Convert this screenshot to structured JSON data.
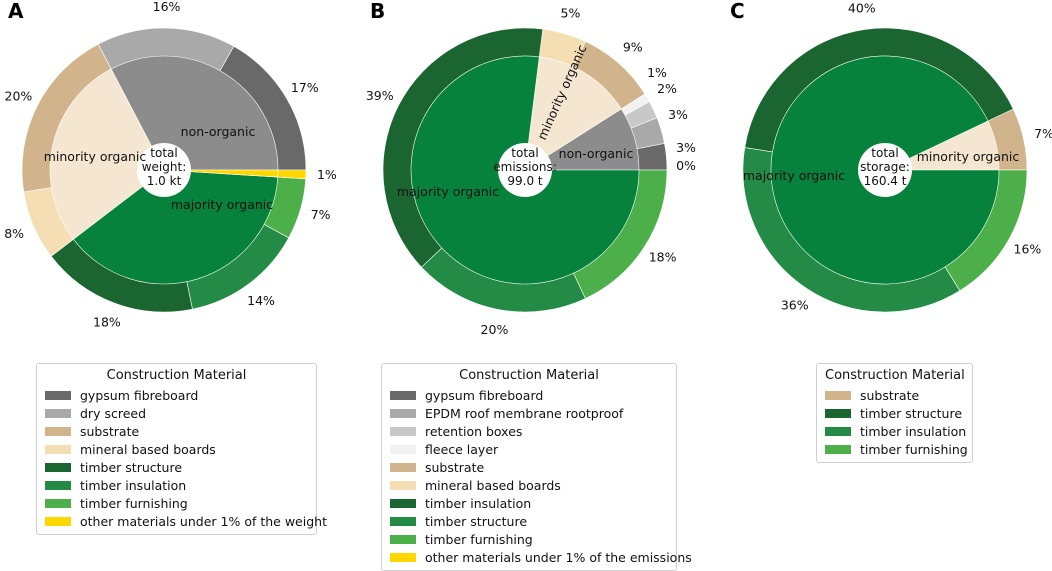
{
  "chart_data": [
    {
      "type": "pie",
      "panel": "A",
      "center_label": [
        "total",
        "weight:",
        "1.0 kt"
      ],
      "outer": [
        {
          "key": "gypsum",
          "value": 17,
          "label": "17%",
          "color": "#696969"
        },
        {
          "key": "dry-screed",
          "value": 16,
          "label": "16%",
          "color": "#a9a9a9"
        },
        {
          "key": "substrate",
          "value": 20,
          "label": "20%",
          "color": "#d2b48c"
        },
        {
          "key": "mineral",
          "value": 8,
          "label": "8%",
          "color": "#f5deb3"
        },
        {
          "key": "timber-structure",
          "value": 18,
          "label": "18%",
          "color": "#1b6531"
        },
        {
          "key": "timber-insulation",
          "value": 14,
          "label": "14%",
          "color": "#238b45"
        },
        {
          "key": "timber-furnishing",
          "value": 7,
          "label": "7%",
          "color": "#4daf4a"
        },
        {
          "key": "other",
          "value": 1,
          "label": "1%",
          "color": "#ffd700"
        }
      ],
      "inner": [
        {
          "key": "non-organic",
          "value": 33,
          "label": "non-organic",
          "color": "#8c8c8c"
        },
        {
          "key": "minority-organic",
          "value": 28,
          "label": "minority organic",
          "color": "#f5e6d1"
        },
        {
          "key": "majority-organic",
          "value": 39,
          "label": "majority organic",
          "color": "#07823c"
        },
        {
          "key": "other",
          "value": 1,
          "label": "",
          "color": "#ffd700"
        }
      ],
      "legend": {
        "title": "Construction Material",
        "items": [
          {
            "label": "gypsum fibreboard",
            "color": "#696969"
          },
          {
            "label": "dry screed",
            "color": "#a9a9a9"
          },
          {
            "label": "substrate",
            "color": "#d2b48c"
          },
          {
            "label": "mineral based boards",
            "color": "#f5deb3"
          },
          {
            "label": "timber structure",
            "color": "#1b6531"
          },
          {
            "label": "timber insulation",
            "color": "#238b45"
          },
          {
            "label": "timber furnishing",
            "color": "#4daf4a"
          },
          {
            "label": "other materials under 1% of the weight",
            "color": "#ffd700"
          }
        ]
      }
    },
    {
      "type": "pie",
      "panel": "B",
      "center_label": [
        "total",
        "emissions:",
        "99.0 t"
      ],
      "outer": [
        {
          "key": "gypsum",
          "value": 3,
          "label": "3%",
          "color": "#696969"
        },
        {
          "key": "epdm",
          "value": 3,
          "label": "3%",
          "color": "#a9a9a9"
        },
        {
          "key": "retention",
          "value": 2,
          "label": "2%",
          "color": "#c8c8c8"
        },
        {
          "key": "fleece",
          "value": 1,
          "label": "1%",
          "color": "#f2f2f2"
        },
        {
          "key": "substrate",
          "value": 9,
          "label": "9%",
          "color": "#d2b48c"
        },
        {
          "key": "mineral",
          "value": 5,
          "label": "5%",
          "color": "#f5deb3"
        },
        {
          "key": "timber-insulation",
          "value": 39,
          "label": "39%",
          "color": "#1b6531"
        },
        {
          "key": "timber-structure",
          "value": 20,
          "label": "20%",
          "color": "#238b45"
        },
        {
          "key": "timber-furnishing",
          "value": 18,
          "label": "18%",
          "color": "#4daf4a"
        },
        {
          "key": "other",
          "value": 0,
          "label": "0%",
          "color": "#ffd700"
        }
      ],
      "inner": [
        {
          "key": "non-organic",
          "value": 9,
          "label": "non-organic",
          "color": "#8c8c8c"
        },
        {
          "key": "minority-organic",
          "value": 14,
          "label": "minority organic",
          "color": "#f5e6d1"
        },
        {
          "key": "majority-organic",
          "value": 77,
          "label": "majority organic",
          "color": "#07823c"
        }
      ],
      "legend": {
        "title": "Construction Material",
        "items": [
          {
            "label": "gypsum fibreboard",
            "color": "#696969"
          },
          {
            "label": "EPDM roof membrane rootproof",
            "color": "#a9a9a9"
          },
          {
            "label": "retention boxes",
            "color": "#c8c8c8"
          },
          {
            "label": "fleece layer",
            "color": "#f2f2f2"
          },
          {
            "label": "substrate",
            "color": "#d2b48c"
          },
          {
            "label": "mineral based boards",
            "color": "#f5deb3"
          },
          {
            "label": "timber insulation",
            "color": "#1b6531"
          },
          {
            "label": "timber structure",
            "color": "#238b45"
          },
          {
            "label": "timber furnishing",
            "color": "#4daf4a"
          },
          {
            "label": "other materials under 1% of the emissions",
            "color": "#ffd700"
          }
        ]
      }
    },
    {
      "type": "pie",
      "panel": "C",
      "center_label": [
        "total",
        "storage:",
        "160.4 t"
      ],
      "outer": [
        {
          "key": "substrate",
          "value": 7,
          "label": "7%",
          "color": "#d2b48c"
        },
        {
          "key": "timber-structure",
          "value": 40,
          "label": "40%",
          "color": "#1b6531"
        },
        {
          "key": "timber-insulation",
          "value": 36,
          "label": "36%",
          "color": "#238b45"
        },
        {
          "key": "timber-furnishing",
          "value": 16,
          "label": "16%",
          "color": "#4daf4a"
        }
      ],
      "inner": [
        {
          "key": "minority-organic",
          "value": 7,
          "label": "minority organic",
          "color": "#f5e6d1"
        },
        {
          "key": "majority-organic",
          "value": 92,
          "label": "majority organic",
          "color": "#07823c"
        }
      ],
      "legend": {
        "title": "Construction Material",
        "items": [
          {
            "label": "substrate",
            "color": "#d2b48c"
          },
          {
            "label": "timber structure",
            "color": "#1b6531"
          },
          {
            "label": "timber insulation",
            "color": "#238b45"
          },
          {
            "label": "timber furnishing",
            "color": "#4daf4a"
          }
        ]
      }
    }
  ]
}
